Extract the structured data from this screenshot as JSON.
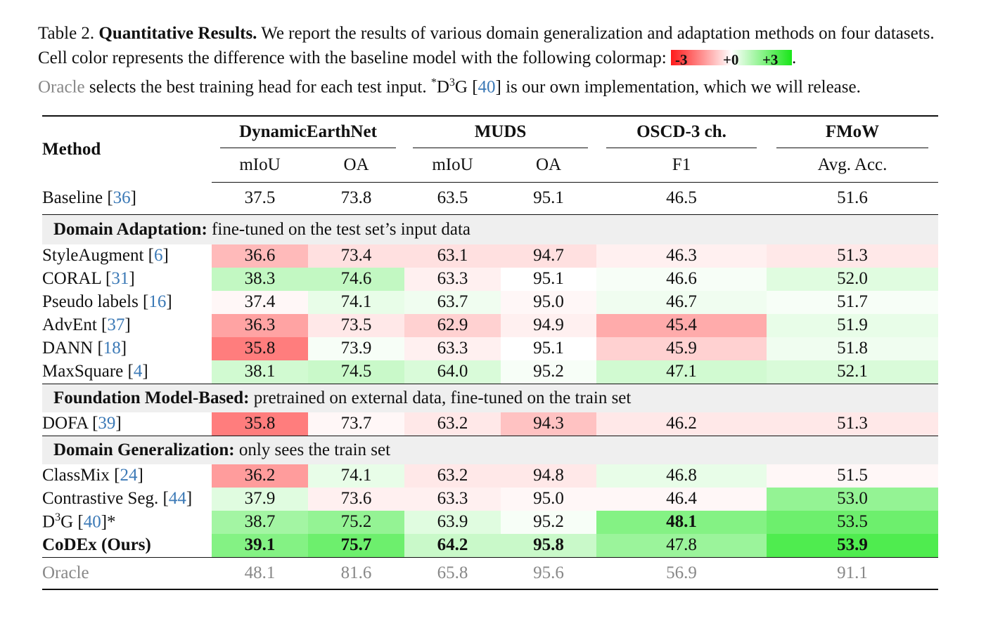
{
  "caption": {
    "label": "Table 2.",
    "title": "Quantitative Results.",
    "text1": " We report the results of various domain generalization and adaptation methods on four datasets.  Cell color represents the difference with the baseline model with the following colormap: ",
    "cmap_min": "-3",
    "cmap_mid": "+0",
    "cmap_max": "+3",
    "text2": ".",
    "oracle_word": "Oracle",
    "text3": " selects the best training head for each test input. ",
    "star": "*",
    "d3g_d": "D",
    "d3g_sup": "3",
    "d3g_g": "G [",
    "d3g_ref": "40",
    "text4": "] is our own implementation, which we will release."
  },
  "colors": {
    "neg": "#ff1a1a",
    "pos": "#19e619",
    "oracle": "#888888",
    "ref": "#3b79b6",
    "group_bg": "#efefef"
  },
  "headers": {
    "method": "Method",
    "datasets": [
      "DynamicEarthNet",
      "MUDS",
      "OSCD-3 ch.",
      "FMoW"
    ],
    "metrics": [
      "mIoU",
      "OA",
      "mIoU",
      "OA",
      "F1",
      "Avg. Acc."
    ]
  },
  "baseline": {
    "name": "Baseline [",
    "ref": "36",
    "close": "]",
    "values": [
      "37.5",
      "73.8",
      "63.5",
      "95.1",
      "46.5",
      "51.6"
    ]
  },
  "groups": [
    {
      "title": "Domain Adaptation:",
      "desc": " fine-tuned on the test set’s input data",
      "rows": [
        {
          "name": "StyleAugment [",
          "ref": "6",
          "close": "]",
          "values": [
            "36.6",
            "73.4",
            "63.1",
            "94.7",
            "46.3",
            "51.3"
          ],
          "deltas": [
            -0.9,
            -0.4,
            -0.4,
            -0.4,
            -0.2,
            -0.3
          ]
        },
        {
          "name": "CORAL [",
          "ref": "31",
          "close": "]",
          "values": [
            "38.3",
            "74.6",
            "63.3",
            "95.1",
            "46.6",
            "52.0"
          ],
          "deltas": [
            0.8,
            0.8,
            -0.2,
            0.0,
            0.1,
            0.4
          ]
        },
        {
          "name": "Pseudo labels [",
          "ref": "16",
          "close": "]",
          "values": [
            "37.4",
            "74.1",
            "63.7",
            "95.0",
            "46.7",
            "51.7"
          ],
          "deltas": [
            -0.1,
            0.3,
            0.2,
            -0.1,
            0.2,
            0.1
          ]
        },
        {
          "name": "AdvEnt [",
          "ref": "37",
          "close": "]",
          "values": [
            "36.3",
            "73.5",
            "62.9",
            "94.9",
            "45.4",
            "51.9"
          ],
          "deltas": [
            -1.2,
            -0.3,
            -0.6,
            -0.2,
            -1.1,
            0.3
          ]
        },
        {
          "name": "DANN [",
          "ref": "18",
          "close": "]",
          "values": [
            "35.8",
            "73.9",
            "63.3",
            "95.1",
            "45.9",
            "51.8"
          ],
          "deltas": [
            -1.7,
            0.1,
            -0.2,
            0.0,
            -0.6,
            0.2
          ]
        },
        {
          "name": "MaxSquare [",
          "ref": "4",
          "close": "]",
          "values": [
            "38.1",
            "74.5",
            "64.0",
            "95.2",
            "47.1",
            "52.1"
          ],
          "deltas": [
            0.6,
            0.7,
            0.5,
            0.1,
            0.6,
            0.5
          ]
        }
      ]
    },
    {
      "title": "Foundation Model-Based:",
      "desc": " pretrained on external data, fine-tuned on the train set",
      "rows": [
        {
          "name": "DOFA [",
          "ref": "39",
          "close": "]",
          "values": [
            "35.8",
            "73.7",
            "63.2",
            "94.3",
            "46.2",
            "51.3"
          ],
          "deltas": [
            -1.7,
            -0.1,
            -0.3,
            -0.8,
            -0.3,
            -0.3
          ]
        }
      ]
    },
    {
      "title": "Domain Generalization:",
      "desc": " only sees the train set",
      "rows": [
        {
          "name": "ClassMix [",
          "ref": "24",
          "close": "]",
          "values": [
            "36.2",
            "74.1",
            "63.2",
            "94.8",
            "46.8",
            "51.5"
          ],
          "deltas": [
            -1.3,
            0.3,
            -0.3,
            -0.3,
            0.3,
            -0.1
          ]
        },
        {
          "name": "Contrastive Seg. [",
          "ref": "44",
          "close": "]",
          "values": [
            "37.9",
            "73.6",
            "63.3",
            "95.0",
            "46.4",
            "53.0"
          ],
          "deltas": [
            0.4,
            -0.2,
            -0.2,
            -0.1,
            -0.1,
            1.4
          ]
        },
        {
          "name": "D",
          "sup": "3",
          "name2": "G [",
          "ref": "40",
          "close": "]*",
          "values": [
            "38.7",
            "75.2",
            "63.9",
            "95.2",
            "48.1",
            "53.5"
          ],
          "deltas": [
            1.2,
            1.4,
            0.4,
            0.1,
            1.6,
            1.9
          ],
          "bold_cells": [
            4
          ]
        },
        {
          "name": "CoDEx (Ours)",
          "ref": "",
          "close": "",
          "values": [
            "39.1",
            "75.7",
            "64.2",
            "95.8",
            "47.8",
            "53.9"
          ],
          "deltas": [
            1.6,
            1.9,
            0.7,
            0.7,
            1.3,
            2.3
          ],
          "bold_name": true,
          "bold_cells": [
            0,
            1,
            2,
            3,
            5
          ]
        }
      ]
    }
  ],
  "oracle": {
    "name": "Oracle",
    "values": [
      "48.1",
      "81.6",
      "65.8",
      "95.6",
      "56.9",
      "91.1"
    ]
  }
}
